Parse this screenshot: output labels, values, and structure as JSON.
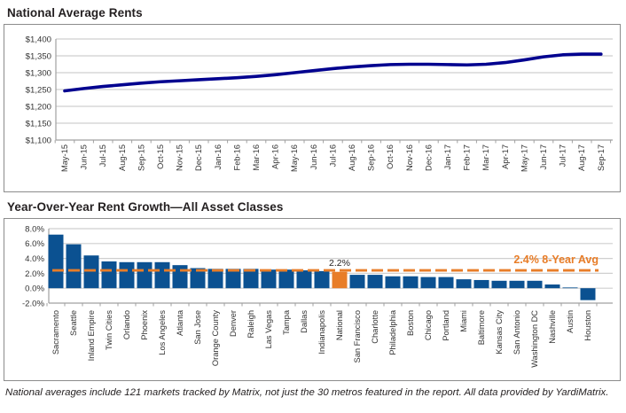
{
  "footnote": "National averages include 121 markets tracked by Matrix, not just the 30 metros featured in the report. All data provided by YardiMatrix.",
  "colors": {
    "line": "#00008F",
    "bar": "#0B5191",
    "highlight": "#E87D28",
    "grid": "#CFCFCF",
    "axis": "#A0A0A0",
    "tick_text": "#333333",
    "title_text": "#231F20"
  },
  "chart_data": [
    {
      "type": "line",
      "title": "National Average Rents",
      "x": [
        "May-15",
        "Jun-15",
        "Jul-15",
        "Aug-15",
        "Sep-15",
        "Oct-15",
        "Nov-15",
        "Dec-15",
        "Jan-16",
        "Feb-16",
        "Mar-16",
        "Apr-16",
        "May-16",
        "Jun-16",
        "Jul-16",
        "Aug-16",
        "Sep-16",
        "Oct-16",
        "Nov-16",
        "Dec-16",
        "Jan-17",
        "Feb-17",
        "Mar-17",
        "Apr-17",
        "May-17",
        "Jun-17",
        "Jul-17",
        "Aug-17",
        "Sep-17"
      ],
      "series": [
        {
          "name": "National Average Rent ($)",
          "values": [
            1246,
            1253,
            1259,
            1264,
            1269,
            1273,
            1276,
            1279,
            1282,
            1285,
            1289,
            1294,
            1300,
            1306,
            1312,
            1317,
            1321,
            1324,
            1325,
            1325,
            1324,
            1323,
            1325,
            1330,
            1338,
            1347,
            1353,
            1355,
            1355
          ]
        }
      ],
      "ylim": [
        1100,
        1400
      ],
      "ytick_labels": [
        "$1,400",
        "$1,350",
        "$1,300",
        "$1,250",
        "$1,200",
        "$1,150",
        "$1,100"
      ],
      "ytick_values": [
        1400,
        1350,
        1300,
        1250,
        1200,
        1150,
        1100
      ],
      "grid": "horizontal",
      "legend": "none"
    },
    {
      "type": "bar",
      "title": "Year-Over-Year Rent Growth—All Asset Classes",
      "categories": [
        "Sacramento",
        "Seattle",
        "Inland Empire",
        "Twin Cities",
        "Orlando",
        "Phoenix",
        "Los Angeles",
        "Atlanta",
        "San Jose",
        "Orange County",
        "Denver",
        "Raleigh",
        "Las Vegas",
        "Tampa",
        "Dallas",
        "Indianapolis",
        "National",
        "San Francisco",
        "Charlotte",
        "Philadelphia",
        "Boston",
        "Chicago",
        "Portland",
        "Miami",
        "Baltimore",
        "Kansas City",
        "San Antonio",
        "Washington DC",
        "Nashville",
        "Austin",
        "Houston"
      ],
      "values": [
        7.2,
        5.9,
        4.4,
        3.6,
        3.5,
        3.5,
        3.5,
        3.1,
        2.7,
        2.6,
        2.6,
        2.6,
        2.5,
        2.5,
        2.4,
        2.3,
        2.2,
        1.8,
        1.8,
        1.6,
        1.6,
        1.5,
        1.5,
        1.2,
        1.1,
        1.0,
        1.0,
        1.0,
        0.5,
        0.1,
        -1.6
      ],
      "ylim": [
        -2,
        8
      ],
      "ytick_labels": [
        "8.0%",
        "6.0%",
        "4.0%",
        "2.0%",
        "0.0%",
        "-2.0%"
      ],
      "ytick_values": [
        8,
        6,
        4,
        2,
        0,
        -2
      ],
      "highlight_category": "National",
      "avg_line": {
        "value": 2.4,
        "label": "2.4% 8-Year Avg",
        "style": "dashed"
      },
      "data_labels": [
        {
          "category": "National",
          "text": "2.2%"
        }
      ],
      "grid": "horizontal",
      "legend": "none"
    }
  ]
}
